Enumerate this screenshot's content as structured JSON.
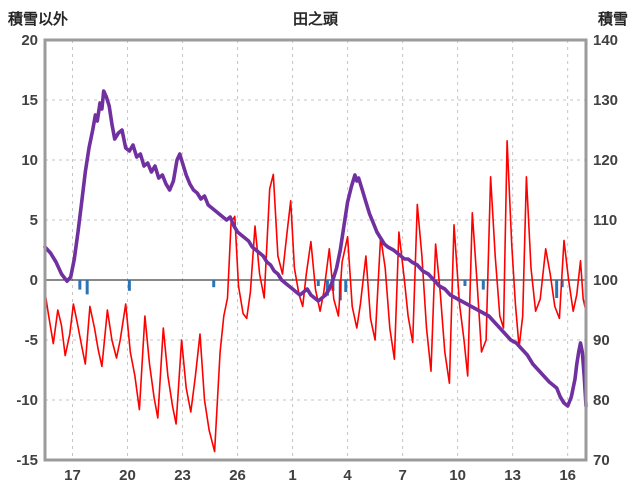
{
  "chart": {
    "title": "田之頭",
    "left_axis_title": "積雪以外",
    "right_axis_title": "積雪"
  },
  "chart_data": {
    "type": "line",
    "title": "田之頭",
    "grid": true,
    "legend": "none",
    "left_axis": {
      "label": "積雪以外",
      "min": -15,
      "max": 20,
      "step": 5,
      "ticks": [
        20,
        15,
        10,
        5,
        0,
        -5,
        -10,
        -15
      ]
    },
    "right_axis": {
      "label": "積雪",
      "min": 70,
      "max": 140,
      "step": 10,
      "ticks": [
        140,
        130,
        120,
        110,
        100,
        90,
        80,
        70
      ]
    },
    "x_axis": {
      "domain": [
        0,
        29.5
      ],
      "tick_positions": [
        1.5,
        4.5,
        7.5,
        10.5,
        13.5,
        16.5,
        19.5,
        22.5,
        25.5,
        28.5
      ],
      "tick_labels": [
        "17",
        "20",
        "23",
        "26",
        "1",
        "4",
        "7",
        "10",
        "13",
        "16"
      ]
    },
    "colors": {
      "red_series": "#FF0000",
      "purple_series": "#7030A0",
      "blue_bars": "#2E74B5",
      "gridline": "#C6C6C6",
      "border": "#9B9B9B",
      "zero_line": "#404040"
    },
    "series": [
      {
        "name": "red_series",
        "axis": "left",
        "style": "line",
        "color": "#FF0000",
        "points": [
          [
            0,
            -1
          ],
          [
            0.2,
            -3
          ],
          [
            0.45,
            -5.3
          ],
          [
            0.7,
            -2.5
          ],
          [
            0.9,
            -3.8
          ],
          [
            1.1,
            -6.3
          ],
          [
            1.35,
            -4.5
          ],
          [
            1.55,
            -2
          ],
          [
            1.75,
            -3.5
          ],
          [
            2.0,
            -5.5
          ],
          [
            2.2,
            -7
          ],
          [
            2.45,
            -2.2
          ],
          [
            2.7,
            -4
          ],
          [
            2.9,
            -5.8
          ],
          [
            3.1,
            -7.2
          ],
          [
            3.4,
            -2.5
          ],
          [
            3.65,
            -5
          ],
          [
            3.9,
            -6.5
          ],
          [
            4.1,
            -5
          ],
          [
            4.4,
            -2
          ],
          [
            4.65,
            -6
          ],
          [
            4.9,
            -8
          ],
          [
            5.15,
            -10.8
          ],
          [
            5.45,
            -3
          ],
          [
            5.7,
            -7
          ],
          [
            5.95,
            -9.8
          ],
          [
            6.15,
            -11.5
          ],
          [
            6.45,
            -4
          ],
          [
            6.7,
            -8
          ],
          [
            6.95,
            -10.5
          ],
          [
            7.15,
            -12
          ],
          [
            7.45,
            -5
          ],
          [
            7.7,
            -9
          ],
          [
            7.95,
            -11
          ],
          [
            8.2,
            -8
          ],
          [
            8.45,
            -4.5
          ],
          [
            8.7,
            -10
          ],
          [
            8.95,
            -12.5
          ],
          [
            9.25,
            -14.3
          ],
          [
            9.55,
            -6
          ],
          [
            9.75,
            -3
          ],
          [
            9.95,
            -1.5
          ],
          [
            10.15,
            4.8
          ],
          [
            10.35,
            5.3
          ],
          [
            10.55,
            -0.5
          ],
          [
            10.8,
            -2.8
          ],
          [
            11.0,
            -3.2
          ],
          [
            11.2,
            -1
          ],
          [
            11.45,
            4.5
          ],
          [
            11.7,
            0.5
          ],
          [
            11.95,
            -1.5
          ],
          [
            12.25,
            7.6
          ],
          [
            12.45,
            8.8
          ],
          [
            12.7,
            2
          ],
          [
            12.95,
            0.5
          ],
          [
            13.2,
            4
          ],
          [
            13.4,
            6.6
          ],
          [
            13.6,
            1
          ],
          [
            13.85,
            -1.2
          ],
          [
            14.05,
            -2.2
          ],
          [
            14.25,
            0.5
          ],
          [
            14.5,
            3.2
          ],
          [
            14.75,
            -0.8
          ],
          [
            15.0,
            -2.6
          ],
          [
            15.2,
            -1
          ],
          [
            15.5,
            2.6
          ],
          [
            15.75,
            -1.6
          ],
          [
            16.0,
            -3
          ],
          [
            16.2,
            1.5
          ],
          [
            16.5,
            3.6
          ],
          [
            16.75,
            -2.2
          ],
          [
            17.0,
            -4
          ],
          [
            17.2,
            -2
          ],
          [
            17.5,
            2
          ],
          [
            17.75,
            -3.2
          ],
          [
            18.0,
            -5
          ],
          [
            18.3,
            3.6
          ],
          [
            18.55,
            1
          ],
          [
            18.8,
            -4
          ],
          [
            19.05,
            -6.6
          ],
          [
            19.3,
            4
          ],
          [
            19.6,
            0
          ],
          [
            19.8,
            -3
          ],
          [
            20.05,
            -5.2
          ],
          [
            20.3,
            6.3
          ],
          [
            20.55,
            2
          ],
          [
            20.8,
            -4
          ],
          [
            21.05,
            -7.6
          ],
          [
            21.3,
            3
          ],
          [
            21.55,
            -1
          ],
          [
            21.8,
            -6
          ],
          [
            22.05,
            -8.6
          ],
          [
            22.3,
            4.6
          ],
          [
            22.6,
            -2
          ],
          [
            22.85,
            -5
          ],
          [
            23.05,
            -8
          ],
          [
            23.3,
            5.6
          ],
          [
            23.55,
            0
          ],
          [
            23.8,
            -6
          ],
          [
            24.05,
            -5
          ],
          [
            24.3,
            8.6
          ],
          [
            24.55,
            2
          ],
          [
            24.8,
            -3
          ],
          [
            25.0,
            -4
          ],
          [
            25.2,
            11.6
          ],
          [
            25.45,
            3
          ],
          [
            25.65,
            -2
          ],
          [
            25.85,
            -5.6
          ],
          [
            26.05,
            -3
          ],
          [
            26.25,
            8.6
          ],
          [
            26.5,
            1
          ],
          [
            26.75,
            -2.6
          ],
          [
            27.0,
            -1.6
          ],
          [
            27.3,
            2.6
          ],
          [
            27.55,
            0.5
          ],
          [
            27.8,
            -2.2
          ],
          [
            28.05,
            -3.2
          ],
          [
            28.3,
            3.3
          ],
          [
            28.55,
            0
          ],
          [
            28.8,
            -2.6
          ],
          [
            29.0,
            -1.2
          ],
          [
            29.2,
            1.6
          ],
          [
            29.35,
            -1.6
          ],
          [
            29.5,
            -2.6
          ]
        ]
      },
      {
        "name": "purple_series",
        "axis": "right",
        "style": "line",
        "color": "#7030A0",
        "points": [
          [
            0,
            105.5
          ],
          [
            0.3,
            104.5
          ],
          [
            0.6,
            103
          ],
          [
            0.9,
            101
          ],
          [
            1.2,
            99.8
          ],
          [
            1.4,
            100.5
          ],
          [
            1.6,
            103.5
          ],
          [
            1.8,
            108
          ],
          [
            2.0,
            113
          ],
          [
            2.2,
            118
          ],
          [
            2.4,
            122
          ],
          [
            2.6,
            125
          ],
          [
            2.75,
            127.5
          ],
          [
            2.85,
            126.5
          ],
          [
            3.0,
            129.5
          ],
          [
            3.1,
            128.5
          ],
          [
            3.2,
            131.5
          ],
          [
            3.35,
            130.5
          ],
          [
            3.5,
            129
          ],
          [
            3.65,
            126
          ],
          [
            3.8,
            123.5
          ],
          [
            4.0,
            124.5
          ],
          [
            4.2,
            125
          ],
          [
            4.4,
            122
          ],
          [
            4.6,
            121.5
          ],
          [
            4.8,
            122.5
          ],
          [
            5.0,
            120.5
          ],
          [
            5.2,
            121
          ],
          [
            5.4,
            119
          ],
          [
            5.6,
            119.5
          ],
          [
            5.8,
            118
          ],
          [
            6.0,
            119
          ],
          [
            6.2,
            117
          ],
          [
            6.4,
            117.5
          ],
          [
            6.6,
            116
          ],
          [
            6.8,
            115
          ],
          [
            7.0,
            116.5
          ],
          [
            7.2,
            120
          ],
          [
            7.35,
            121
          ],
          [
            7.5,
            119.5
          ],
          [
            7.7,
            117.5
          ],
          [
            7.9,
            116
          ],
          [
            8.1,
            115
          ],
          [
            8.3,
            114.5
          ],
          [
            8.5,
            113.5
          ],
          [
            8.7,
            114
          ],
          [
            8.9,
            112.5
          ],
          [
            9.1,
            112
          ],
          [
            9.3,
            111.5
          ],
          [
            9.5,
            111
          ],
          [
            9.7,
            110.5
          ],
          [
            9.9,
            110
          ],
          [
            10.1,
            110.5
          ],
          [
            10.3,
            109
          ],
          [
            10.5,
            108
          ],
          [
            10.7,
            107.5
          ],
          [
            10.9,
            107
          ],
          [
            11.1,
            106.5
          ],
          [
            11.3,
            105.5
          ],
          [
            11.5,
            105
          ],
          [
            11.7,
            104.5
          ],
          [
            11.9,
            104
          ],
          [
            12.1,
            103
          ],
          [
            12.3,
            102.5
          ],
          [
            12.5,
            101.5
          ],
          [
            12.7,
            101
          ],
          [
            12.9,
            100
          ],
          [
            13.1,
            99.5
          ],
          [
            13.3,
            99
          ],
          [
            13.5,
            98.5
          ],
          [
            13.7,
            98
          ],
          [
            13.9,
            97.5
          ],
          [
            14.1,
            98
          ],
          [
            14.3,
            98.5
          ],
          [
            14.5,
            97.5
          ],
          [
            14.7,
            97
          ],
          [
            14.9,
            96.5
          ],
          [
            15.1,
            97
          ],
          [
            15.3,
            97.5
          ],
          [
            15.5,
            98.5
          ],
          [
            15.7,
            100
          ],
          [
            15.9,
            102
          ],
          [
            16.1,
            105
          ],
          [
            16.3,
            109
          ],
          [
            16.5,
            113
          ],
          [
            16.7,
            115.5
          ],
          [
            16.9,
            117.5
          ],
          [
            17.0,
            116.5
          ],
          [
            17.1,
            117
          ],
          [
            17.3,
            115
          ],
          [
            17.5,
            113
          ],
          [
            17.7,
            111
          ],
          [
            17.9,
            109.5
          ],
          [
            18.1,
            108
          ],
          [
            18.3,
            107
          ],
          [
            18.5,
            106
          ],
          [
            18.7,
            105.5
          ],
          [
            19.0,
            105
          ],
          [
            19.2,
            104.5
          ],
          [
            19.4,
            104
          ],
          [
            19.6,
            103.5
          ],
          [
            19.8,
            103.5
          ],
          [
            20.0,
            103
          ],
          [
            20.3,
            102.5
          ],
          [
            20.6,
            101.5
          ],
          [
            20.9,
            101
          ],
          [
            21.2,
            100
          ],
          [
            21.5,
            99
          ],
          [
            21.8,
            98.5
          ],
          [
            22.1,
            97.5
          ],
          [
            22.4,
            97
          ],
          [
            22.7,
            96.5
          ],
          [
            23.0,
            96
          ],
          [
            23.3,
            95.5
          ],
          [
            23.6,
            95
          ],
          [
            23.9,
            94.5
          ],
          [
            24.2,
            94
          ],
          [
            24.5,
            93
          ],
          [
            24.8,
            92
          ],
          [
            25.1,
            91
          ],
          [
            25.4,
            90
          ],
          [
            25.7,
            89.5
          ],
          [
            26.0,
            88.5
          ],
          [
            26.3,
            87.5
          ],
          [
            26.6,
            86
          ],
          [
            26.9,
            85
          ],
          [
            27.2,
            84
          ],
          [
            27.5,
            83
          ],
          [
            27.7,
            82.5
          ],
          [
            27.9,
            82
          ],
          [
            28.1,
            80.5
          ],
          [
            28.3,
            79.5
          ],
          [
            28.5,
            79
          ],
          [
            28.7,
            80.5
          ],
          [
            28.9,
            83.5
          ],
          [
            29.0,
            86
          ],
          [
            29.1,
            88
          ],
          [
            29.2,
            89.5
          ],
          [
            29.3,
            88
          ],
          [
            29.4,
            84
          ],
          [
            29.5,
            79
          ]
        ]
      },
      {
        "name": "blue_bars",
        "axis": "left",
        "style": "bar",
        "color": "#2E74B5",
        "points": [
          [
            1.9,
            -0.8
          ],
          [
            2.3,
            -1.2
          ],
          [
            4.6,
            -0.9
          ],
          [
            9.2,
            -0.6
          ],
          [
            14.9,
            -0.5
          ],
          [
            15.4,
            -1.3
          ],
          [
            15.7,
            -0.9
          ],
          [
            16.1,
            -1.7
          ],
          [
            16.4,
            -1.0
          ],
          [
            22.9,
            -0.5
          ],
          [
            23.9,
            -0.8
          ],
          [
            27.9,
            -1.5
          ],
          [
            28.2,
            -0.6
          ]
        ]
      }
    ]
  }
}
